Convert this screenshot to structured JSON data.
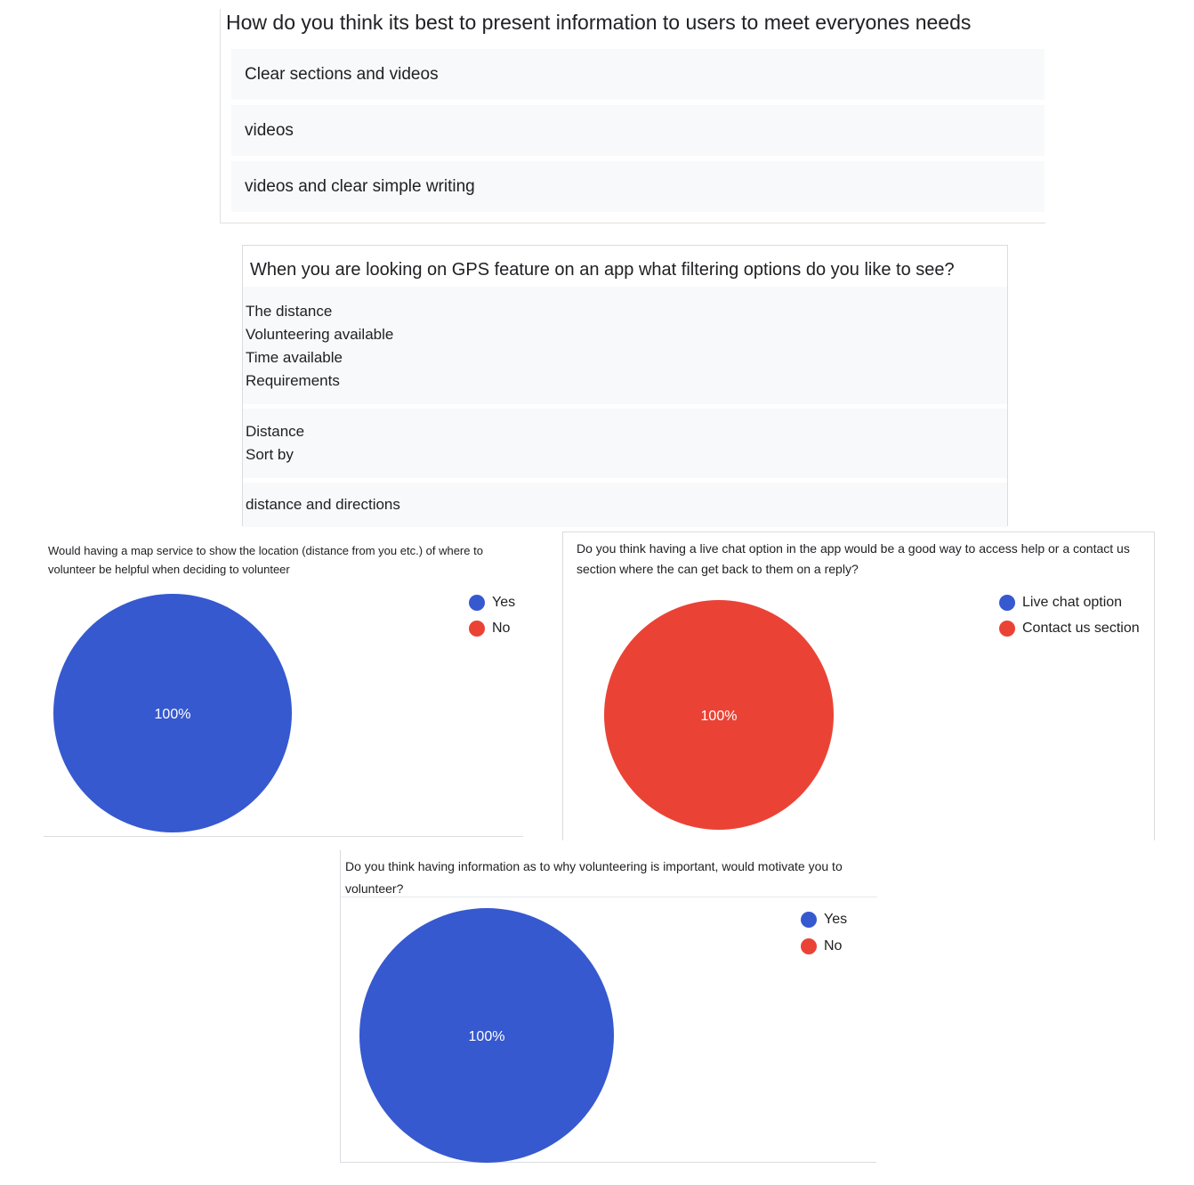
{
  "panel1": {
    "question": "How do you think its best to present information to users to meet everyones needs",
    "responses": [
      "Clear sections and videos",
      "videos",
      "videos and clear simple writing"
    ]
  },
  "panel2": {
    "question": "When you are looking on GPS feature on an app what filtering options do you like to see?",
    "responses": [
      [
        "The distance",
        "Volunteering available",
        "Time available",
        "Requirements"
      ],
      [
        "Distance",
        "Sort by"
      ],
      [
        "distance and directions"
      ]
    ]
  },
  "chart_data": [
    {
      "type": "pie",
      "title": "Would having a map service to show the location (distance from you etc.) of where to volunteer be helpful when deciding to volunteer",
      "labels": [
        "Yes",
        "No"
      ],
      "values": [
        100,
        0
      ],
      "colors": [
        "#3659cf",
        "#ea4335"
      ],
      "slice_label": "100%",
      "legend": "top-right"
    },
    {
      "type": "pie",
      "title": "Do you think having a live chat option in the app would be a good way to access help or a contact us section where the can get back to them on a reply?",
      "labels": [
        "Live chat option",
        "Contact us section"
      ],
      "values": [
        0,
        100
      ],
      "colors": [
        "#3659cf",
        "#ea4335"
      ],
      "slice_label": "100%",
      "legend": "top-right"
    },
    {
      "type": "pie",
      "title": "Do you think having information as to why volunteering is important, would motivate you to volunteer?",
      "labels": [
        "Yes",
        "No"
      ],
      "values": [
        100,
        0
      ],
      "colors": [
        "#3659cf",
        "#ea4335"
      ],
      "slice_label": "100%",
      "legend": "top-right"
    }
  ]
}
